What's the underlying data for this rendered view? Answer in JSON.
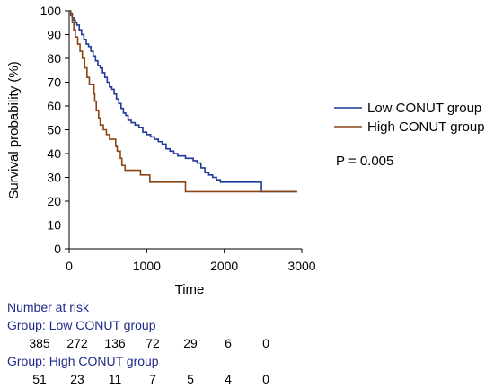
{
  "chart_data": {
    "type": "line",
    "subtype": "kaplan-meier",
    "xlabel": "Time",
    "ylabel": "Survival probability (%)",
    "xlim": [
      0,
      3000
    ],
    "ylim": [
      0,
      100
    ],
    "x_ticks": [
      0,
      1000,
      2000,
      3000
    ],
    "y_ticks": [
      0,
      10,
      20,
      30,
      40,
      50,
      60,
      70,
      80,
      90,
      100
    ],
    "grid": false,
    "legend_position": "right",
    "annotation": "P = 0.005",
    "series": [
      {
        "name": "Low CONUT group",
        "color": "#1f3a9a",
        "points": [
          [
            0,
            100
          ],
          [
            20,
            99
          ],
          [
            40,
            97
          ],
          [
            60,
            96
          ],
          [
            80,
            95
          ],
          [
            100,
            94
          ],
          [
            130,
            92
          ],
          [
            160,
            90
          ],
          [
            190,
            88
          ],
          [
            220,
            86
          ],
          [
            250,
            85
          ],
          [
            280,
            83
          ],
          [
            310,
            81
          ],
          [
            340,
            79
          ],
          [
            370,
            77
          ],
          [
            400,
            76
          ],
          [
            430,
            74
          ],
          [
            460,
            72
          ],
          [
            490,
            70
          ],
          [
            520,
            68
          ],
          [
            550,
            67
          ],
          [
            580,
            65
          ],
          [
            610,
            63
          ],
          [
            640,
            61
          ],
          [
            670,
            59
          ],
          [
            700,
            57
          ],
          [
            730,
            56
          ],
          [
            760,
            54
          ],
          [
            800,
            53
          ],
          [
            850,
            52
          ],
          [
            900,
            51
          ],
          [
            950,
            49
          ],
          [
            1000,
            48
          ],
          [
            1050,
            47
          ],
          [
            1100,
            46
          ],
          [
            1150,
            45
          ],
          [
            1200,
            44
          ],
          [
            1250,
            42
          ],
          [
            1300,
            41
          ],
          [
            1350,
            40
          ],
          [
            1400,
            39
          ],
          [
            1450,
            39
          ],
          [
            1500,
            38
          ],
          [
            1550,
            38
          ],
          [
            1600,
            37
          ],
          [
            1650,
            36
          ],
          [
            1700,
            34
          ],
          [
            1750,
            32
          ],
          [
            1800,
            31
          ],
          [
            1850,
            30
          ],
          [
            1900,
            29
          ],
          [
            1950,
            28
          ],
          [
            2000,
            28
          ],
          [
            2480,
            28
          ],
          [
            2480,
            24
          ],
          [
            2940,
            24
          ]
        ]
      },
      {
        "name": "High CONUT group",
        "color": "#8b4513",
        "points": [
          [
            0,
            100
          ],
          [
            20,
            98
          ],
          [
            40,
            95
          ],
          [
            60,
            92
          ],
          [
            80,
            89
          ],
          [
            110,
            86
          ],
          [
            140,
            83
          ],
          [
            170,
            80
          ],
          [
            200,
            76
          ],
          [
            230,
            72
          ],
          [
            260,
            69
          ],
          [
            320,
            69
          ],
          [
            320,
            65
          ],
          [
            330,
            62
          ],
          [
            350,
            58
          ],
          [
            380,
            55
          ],
          [
            400,
            52
          ],
          [
            440,
            52
          ],
          [
            440,
            50
          ],
          [
            480,
            48
          ],
          [
            520,
            46
          ],
          [
            560,
            46
          ],
          [
            600,
            43
          ],
          [
            620,
            41
          ],
          [
            660,
            38
          ],
          [
            680,
            35
          ],
          [
            720,
            33
          ],
          [
            920,
            33
          ],
          [
            920,
            31
          ],
          [
            1040,
            31
          ],
          [
            1040,
            28
          ],
          [
            1500,
            28
          ],
          [
            1500,
            24
          ],
          [
            2940,
            24
          ]
        ]
      }
    ]
  },
  "risk_table": {
    "title": "Number at risk",
    "groups": [
      {
        "label": "Group: Low CONUT group",
        "counts": [
          "385",
          "272",
          "136",
          "72",
          "29",
          "6",
          "0"
        ]
      },
      {
        "label": "Group: High CONUT group",
        "counts": [
          "51",
          "23",
          "11",
          "7",
          "5",
          "4",
          "0"
        ]
      }
    ]
  }
}
